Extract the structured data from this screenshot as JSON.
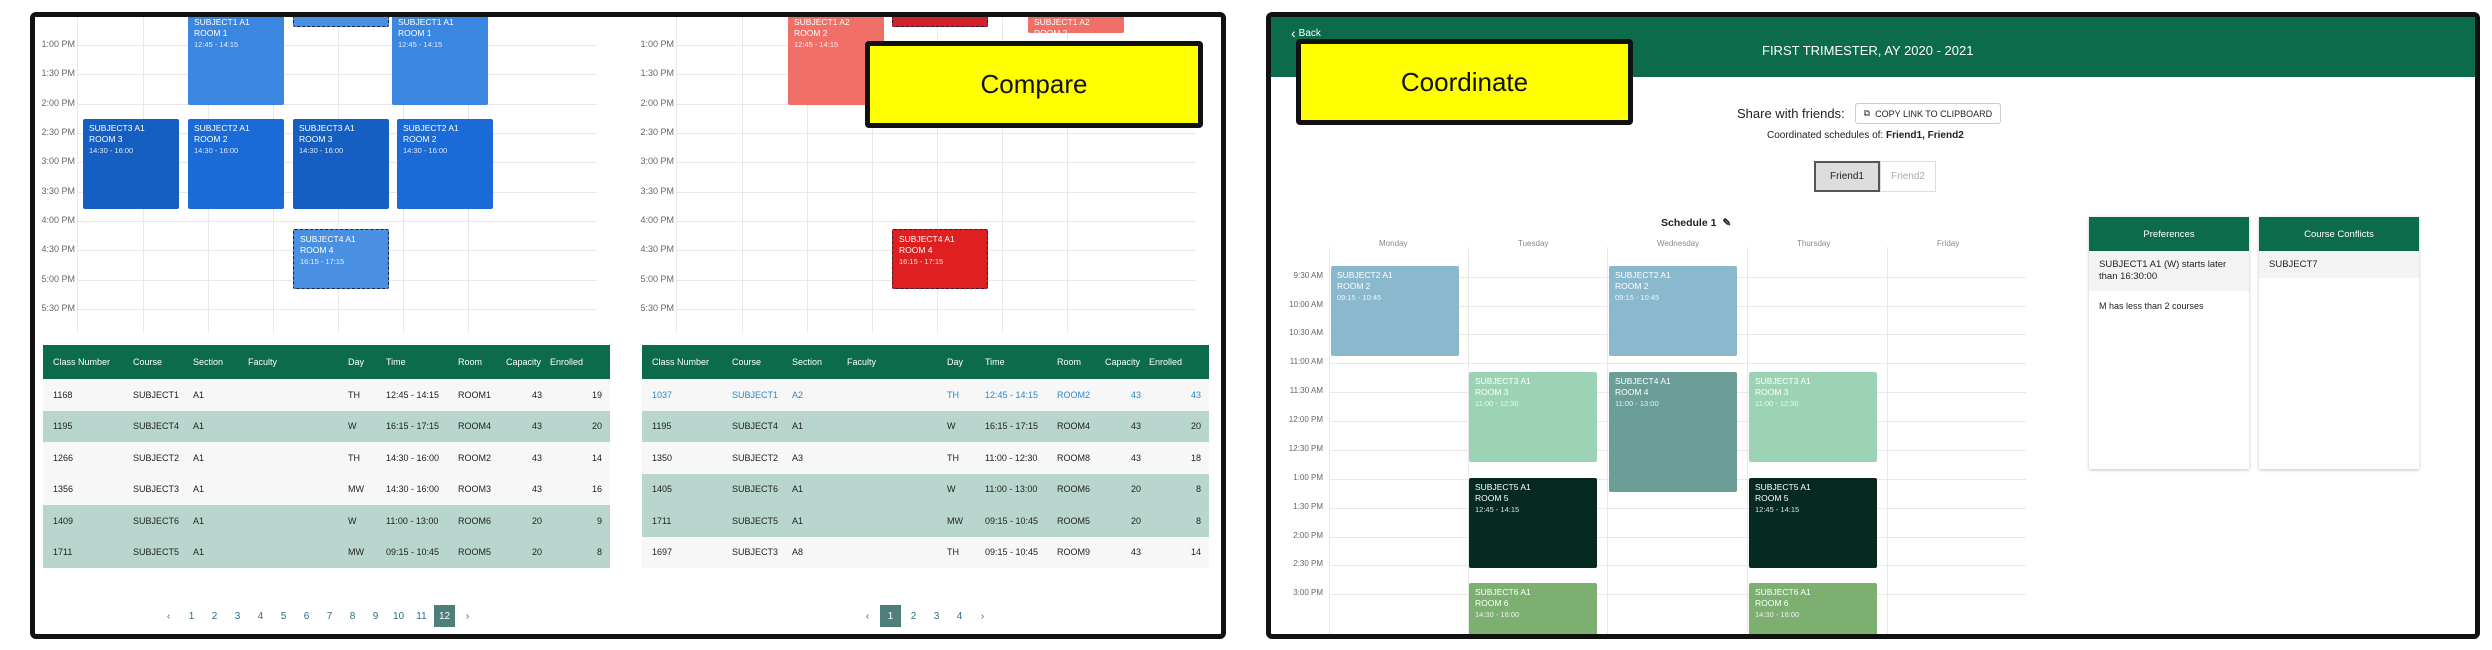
{
  "compare": {
    "badge": "Compare",
    "time_labels": [
      "1:00 PM",
      "1:30 PM",
      "2:00 PM",
      "2:30 PM",
      "3:00 PM",
      "3:30 PM",
      "4:00 PM",
      "4:30 PM",
      "5:00 PM",
      "5:30 PM"
    ],
    "schedule_a": {
      "events": [
        {
          "name": "SUBJECT1 A1",
          "room": "ROOM 1",
          "time": "12:45 - 14:15",
          "color": "#3a86e0",
          "style": "solid"
        },
        {
          "name": "SUBJECT1 A1",
          "room": "ROOM 1",
          "time": "12:45 - 14:15",
          "color": "#3a86e0",
          "style": "solid"
        },
        {
          "name": "SUBJECT3 A1",
          "room": "ROOM 3",
          "time": "14:30 - 16:00",
          "color": "#155fc2",
          "style": "solid"
        },
        {
          "name": "SUBJECT2 A1",
          "room": "ROOM 2",
          "time": "14:30 - 16:00",
          "color": "#1a6ad8",
          "style": "solid"
        },
        {
          "name": "SUBJECT3 A1",
          "room": "ROOM 3",
          "time": "14:30 - 16:00",
          "color": "#155fc2",
          "style": "solid"
        },
        {
          "name": "SUBJECT2 A1",
          "room": "ROOM 2",
          "time": "14:30 - 16:00",
          "color": "#1a6ad8",
          "style": "solid"
        },
        {
          "name": "SUBJECT4 A1",
          "room": "ROOM 4",
          "time": "16:15 - 17:15",
          "color": "#4a90e2",
          "style": "dashed"
        },
        {
          "name": "",
          "room": "",
          "time": "",
          "color": "#4a90e2",
          "style": "dashed"
        }
      ]
    },
    "schedule_b": {
      "events": [
        {
          "name": "SUBJECT1 A2",
          "room": "ROOM 2",
          "time": "12:45 - 14:15",
          "color": "#f07068",
          "style": "solid"
        },
        {
          "name": "SUBJECT1 A2",
          "room": "ROOM 2",
          "time": "",
          "color": "#f07068",
          "style": "solid"
        },
        {
          "name": "",
          "room": "",
          "time": "",
          "color": "#d0202a",
          "style": "dashed"
        },
        {
          "name": "SUBJECT4 A1",
          "room": "ROOM 4",
          "time": "16:15 - 17:15",
          "color": "#e02020",
          "style": "dashed"
        }
      ]
    },
    "table_headers": [
      "Class Number",
      "Course",
      "Section",
      "Faculty",
      "Day",
      "Time",
      "Room",
      "Capacity",
      "Enrolled"
    ],
    "table_a": [
      {
        "class": "1168",
        "course": "SUBJECT1",
        "section": "A1",
        "faculty": "",
        "day": "TH",
        "time": "12:45 - 14:15",
        "room": "ROOM1",
        "cap": "43",
        "enr": "19",
        "style": "white"
      },
      {
        "class": "1195",
        "course": "SUBJECT4",
        "section": "A1",
        "faculty": "",
        "day": "W",
        "time": "16:15 - 17:15",
        "room": "ROOM4",
        "cap": "43",
        "enr": "20",
        "style": "green"
      },
      {
        "class": "1266",
        "course": "SUBJECT2",
        "section": "A1",
        "faculty": "",
        "day": "TH",
        "time": "14:30 - 16:00",
        "room": "ROOM2",
        "cap": "43",
        "enr": "14",
        "style": "white"
      },
      {
        "class": "1356",
        "course": "SUBJECT3",
        "section": "A1",
        "faculty": "",
        "day": "MW",
        "time": "14:30 - 16:00",
        "room": "ROOM3",
        "cap": "43",
        "enr": "16",
        "style": "white"
      },
      {
        "class": "1409",
        "course": "SUBJECT6",
        "section": "A1",
        "faculty": "",
        "day": "W",
        "time": "11:00 - 13:00",
        "room": "ROOM6",
        "cap": "20",
        "enr": "9",
        "style": "green"
      },
      {
        "class": "1711",
        "course": "SUBJECT5",
        "section": "A1",
        "faculty": "",
        "day": "MW",
        "time": "09:15 - 10:45",
        "room": "ROOM5",
        "cap": "20",
        "enr": "8",
        "style": "green"
      }
    ],
    "table_b": [
      {
        "class": "1037",
        "course": "SUBJECT1",
        "section": "A2",
        "faculty": "",
        "day": "TH",
        "time": "12:45 - 14:15",
        "room": "ROOM2",
        "cap": "43",
        "enr": "43",
        "style": "link"
      },
      {
        "class": "1195",
        "course": "SUBJECT4",
        "section": "A1",
        "faculty": "",
        "day": "W",
        "time": "16:15 - 17:15",
        "room": "ROOM4",
        "cap": "43",
        "enr": "20",
        "style": "green"
      },
      {
        "class": "1350",
        "course": "SUBJECT2",
        "section": "A3",
        "faculty": "",
        "day": "TH",
        "time": "11:00 - 12:30",
        "room": "ROOM8",
        "cap": "43",
        "enr": "18",
        "style": "white"
      },
      {
        "class": "1405",
        "course": "SUBJECT6",
        "section": "A1",
        "faculty": "",
        "day": "W",
        "time": "11:00 - 13:00",
        "room": "ROOM6",
        "cap": "20",
        "enr": "8",
        "style": "green"
      },
      {
        "class": "1711",
        "course": "SUBJECT5",
        "section": "A1",
        "faculty": "",
        "day": "MW",
        "time": "09:15 - 10:45",
        "room": "ROOM5",
        "cap": "20",
        "enr": "8",
        "style": "green"
      },
      {
        "class": "1697",
        "course": "SUBJECT3",
        "section": "A8",
        "faculty": "",
        "day": "TH",
        "time": "09:15 - 10:45",
        "room": "ROOM9",
        "cap": "43",
        "enr": "14",
        "style": "white"
      }
    ],
    "pager_a": [
      "‹",
      "1",
      "2",
      "3",
      "4",
      "5",
      "6",
      "7",
      "8",
      "9",
      "10",
      "11",
      "12",
      "›"
    ],
    "pager_a_active": "12",
    "pager_b": [
      "‹",
      "1",
      "2",
      "3",
      "4",
      "›"
    ],
    "pager_b_active": "1"
  },
  "coordinate": {
    "badge": "Coordinate",
    "back_label": "Back",
    "term_title": "FIRST TRIMESTER, AY 2020 - 2021",
    "share_label": "Share with friends:",
    "copy_button": "COPY LINK TO CLIPBOARD",
    "coordinated_prefix": "Coordinated schedules of:",
    "coordinated_names": "Friend1, Friend2",
    "friend_tabs": [
      "Friend1",
      "Friend2"
    ],
    "active_friend": "Friend1",
    "schedule_title": "Schedule 1",
    "days": [
      "Monday",
      "Tuesday",
      "Wednesday",
      "Thursday",
      "Friday"
    ],
    "time_labels": [
      "9:30 AM",
      "10:00 AM",
      "10:30 AM",
      "11:00 AM",
      "11:30 AM",
      "12:00 PM",
      "12:30 PM",
      "1:00 PM",
      "1:30 PM",
      "2:00 PM",
      "2:30 PM",
      "3:00 PM"
    ],
    "events": [
      {
        "name": "SUBJECT2 A1",
        "room": "ROOM 2",
        "time": "09:15 - 10:45",
        "color": "#8ab8cc"
      },
      {
        "name": "SUBJECT2 A1",
        "room": "ROOM 2",
        "time": "09:15 - 10:45",
        "color": "#8ab8cc"
      },
      {
        "name": "SUBJECT3 A1",
        "room": "ROOM 3",
        "time": "11:00 - 12:30",
        "color": "#9bd3b4"
      },
      {
        "name": "SUBJECT4 A1",
        "room": "ROOM 4",
        "time": "11:00 - 13:00",
        "color": "#6a9e96"
      },
      {
        "name": "SUBJECT3 A1",
        "room": "ROOM 3",
        "time": "11:00 - 12:30",
        "color": "#9bd3b4"
      },
      {
        "name": "SUBJECT5 A1",
        "room": "ROOM 5",
        "time": "12:45 - 14:15",
        "color": "#062a22"
      },
      {
        "name": "SUBJECT5 A1",
        "room": "ROOM 5",
        "time": "12:45 - 14:15",
        "color": "#062a22"
      },
      {
        "name": "SUBJECT6 A1",
        "room": "ROOM 6",
        "time": "14:30 - 16:00",
        "color": "#7db070"
      },
      {
        "name": "SUBJECT6 A1",
        "room": "ROOM 6",
        "time": "14:30 - 16:00",
        "color": "#7db070"
      }
    ],
    "preferences": {
      "title": "Preferences",
      "items": [
        "SUBJECT1 A1 (W) starts later than 16:30:00",
        "M has less than 2 courses"
      ]
    },
    "conflicts": {
      "title": "Course Conflicts",
      "items": [
        "SUBJECT7"
      ]
    }
  }
}
